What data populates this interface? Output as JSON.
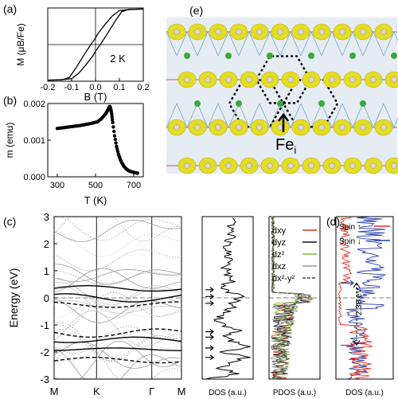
{
  "panel_labels": {
    "a": "(a)",
    "b": "(b)",
    "c": "(c)",
    "d": "(d)",
    "e": "(e)"
  },
  "colors": {
    "axis": "#000000",
    "dxy": "#e0301e",
    "dyz": "#111111",
    "dz2": "#7fb93a",
    "dxz": "#9a9a9a",
    "dx2y2": "#444444",
    "spin_up": "#e0301e",
    "spin_down": "#2c3fa8",
    "isosurface": "#e5dc25",
    "fe_atom": "#3aa83a",
    "crystal_bg": "#e6ecf3"
  },
  "structure": {
    "label_main": "Fe",
    "label_sub": "i",
    "description_icon": "arrow-up-icon"
  },
  "chart_data": [
    {
      "id": "a",
      "type": "line",
      "xlabel": "B (T)",
      "ylabel": "M (μB/Fe)",
      "annotation": "2 K",
      "xlim": [
        -0.2,
        0.2
      ],
      "ylim": [
        -1,
        1
      ],
      "xticks": [
        "-0.2",
        "-0.1",
        "0.0",
        "0.1",
        "0.2"
      ],
      "series": [
        {
          "x": [
            -0.2,
            -0.15,
            -0.1,
            -0.07,
            -0.04,
            -0.01,
            0.0,
            0.02,
            0.05,
            0.08,
            0.11,
            0.14,
            0.2
          ],
          "y": [
            -0.97,
            -0.96,
            -0.93,
            -0.78,
            -0.55,
            -0.3,
            -0.18,
            0.0,
            0.3,
            0.62,
            0.9,
            0.96,
            0.97
          ]
        },
        {
          "x": [
            -0.2,
            -0.14,
            -0.11,
            -0.08,
            -0.05,
            -0.02,
            0.0,
            0.01,
            0.04,
            0.07,
            0.1,
            0.15,
            0.2
          ],
          "y": [
            -0.97,
            -0.96,
            -0.9,
            -0.62,
            -0.3,
            0.0,
            0.18,
            0.3,
            0.55,
            0.78,
            0.93,
            0.96,
            0.97
          ]
        }
      ]
    },
    {
      "id": "b",
      "type": "scatter",
      "xlabel": "T (K)",
      "ylabel": "m (emu)",
      "xlim": [
        250,
        750
      ],
      "ylim": [
        0.0,
        0.002
      ],
      "xticks": [
        "300",
        "500",
        "700"
      ],
      "yticks": [
        "0.000",
        "0.001",
        "0.002"
      ],
      "x": [
        300,
        330,
        360,
        390,
        420,
        450,
        480,
        510,
        530,
        550,
        560,
        570,
        575,
        580,
        585,
        590,
        600,
        610,
        620,
        630,
        640,
        650,
        660,
        670,
        680,
        700,
        720
      ],
      "y": [
        0.00132,
        0.00134,
        0.00136,
        0.00138,
        0.0014,
        0.00143,
        0.00146,
        0.0015,
        0.00158,
        0.0017,
        0.00178,
        0.00188,
        0.00192,
        0.00185,
        0.0017,
        0.00148,
        0.00112,
        0.00083,
        0.00062,
        0.00047,
        0.00036,
        0.00028,
        0.00022,
        0.00018,
        0.00015,
        0.00012,
        0.0001
      ]
    },
    {
      "id": "c_bands",
      "type": "line",
      "ylabel": "Energy (eV)",
      "ylim": [
        -3,
        3
      ],
      "yticks": [
        "-3",
        "-2",
        "-1",
        "0",
        "1",
        "2",
        "3"
      ],
      "kpoints": [
        "M",
        "K",
        "Γ",
        "M"
      ],
      "kpos": [
        0,
        0.333,
        0.767,
        1.0
      ]
    },
    {
      "id": "c_dos",
      "type": "line",
      "xlabel": "DOS (a.u.)",
      "ylim": [
        -3,
        3
      ],
      "energy": [
        -3.0,
        -2.8,
        -2.6,
        -2.4,
        -2.2,
        -2.0,
        -1.8,
        -1.6,
        -1.4,
        -1.2,
        -1.0,
        -0.8,
        -0.6,
        -0.4,
        -0.2,
        0.0,
        0.2,
        0.4,
        0.6,
        0.8,
        1.0,
        1.2,
        1.4,
        1.6,
        1.8,
        2.0,
        2.2,
        2.4,
        2.6,
        2.8,
        3.0
      ],
      "values": [
        0.08,
        0.7,
        0.3,
        0.55,
        0.9,
        0.4,
        0.95,
        0.6,
        0.45,
        0.85,
        0.35,
        0.3,
        0.4,
        0.6,
        0.5,
        0.8,
        0.55,
        0.45,
        0.55,
        0.5,
        0.45,
        0.5,
        0.5,
        0.55,
        0.5,
        0.45,
        0.55,
        0.6,
        0.55,
        0.6,
        0.6
      ]
    },
    {
      "id": "c_pdos",
      "type": "line",
      "xlabel": "PDOS (a.u.)",
      "ylim": [
        -3,
        3
      ],
      "legend": [
        "dxy",
        "dyz",
        "dz²",
        "dxz",
        "dx²-y²"
      ]
    },
    {
      "id": "d",
      "type": "line",
      "xlabel": "DOS (a.u.)",
      "ylim": [
        -3,
        3
      ],
      "legend": [
        "Spin ↑",
        "Spin ↓"
      ],
      "annotation": "2.38 eV"
    }
  ]
}
